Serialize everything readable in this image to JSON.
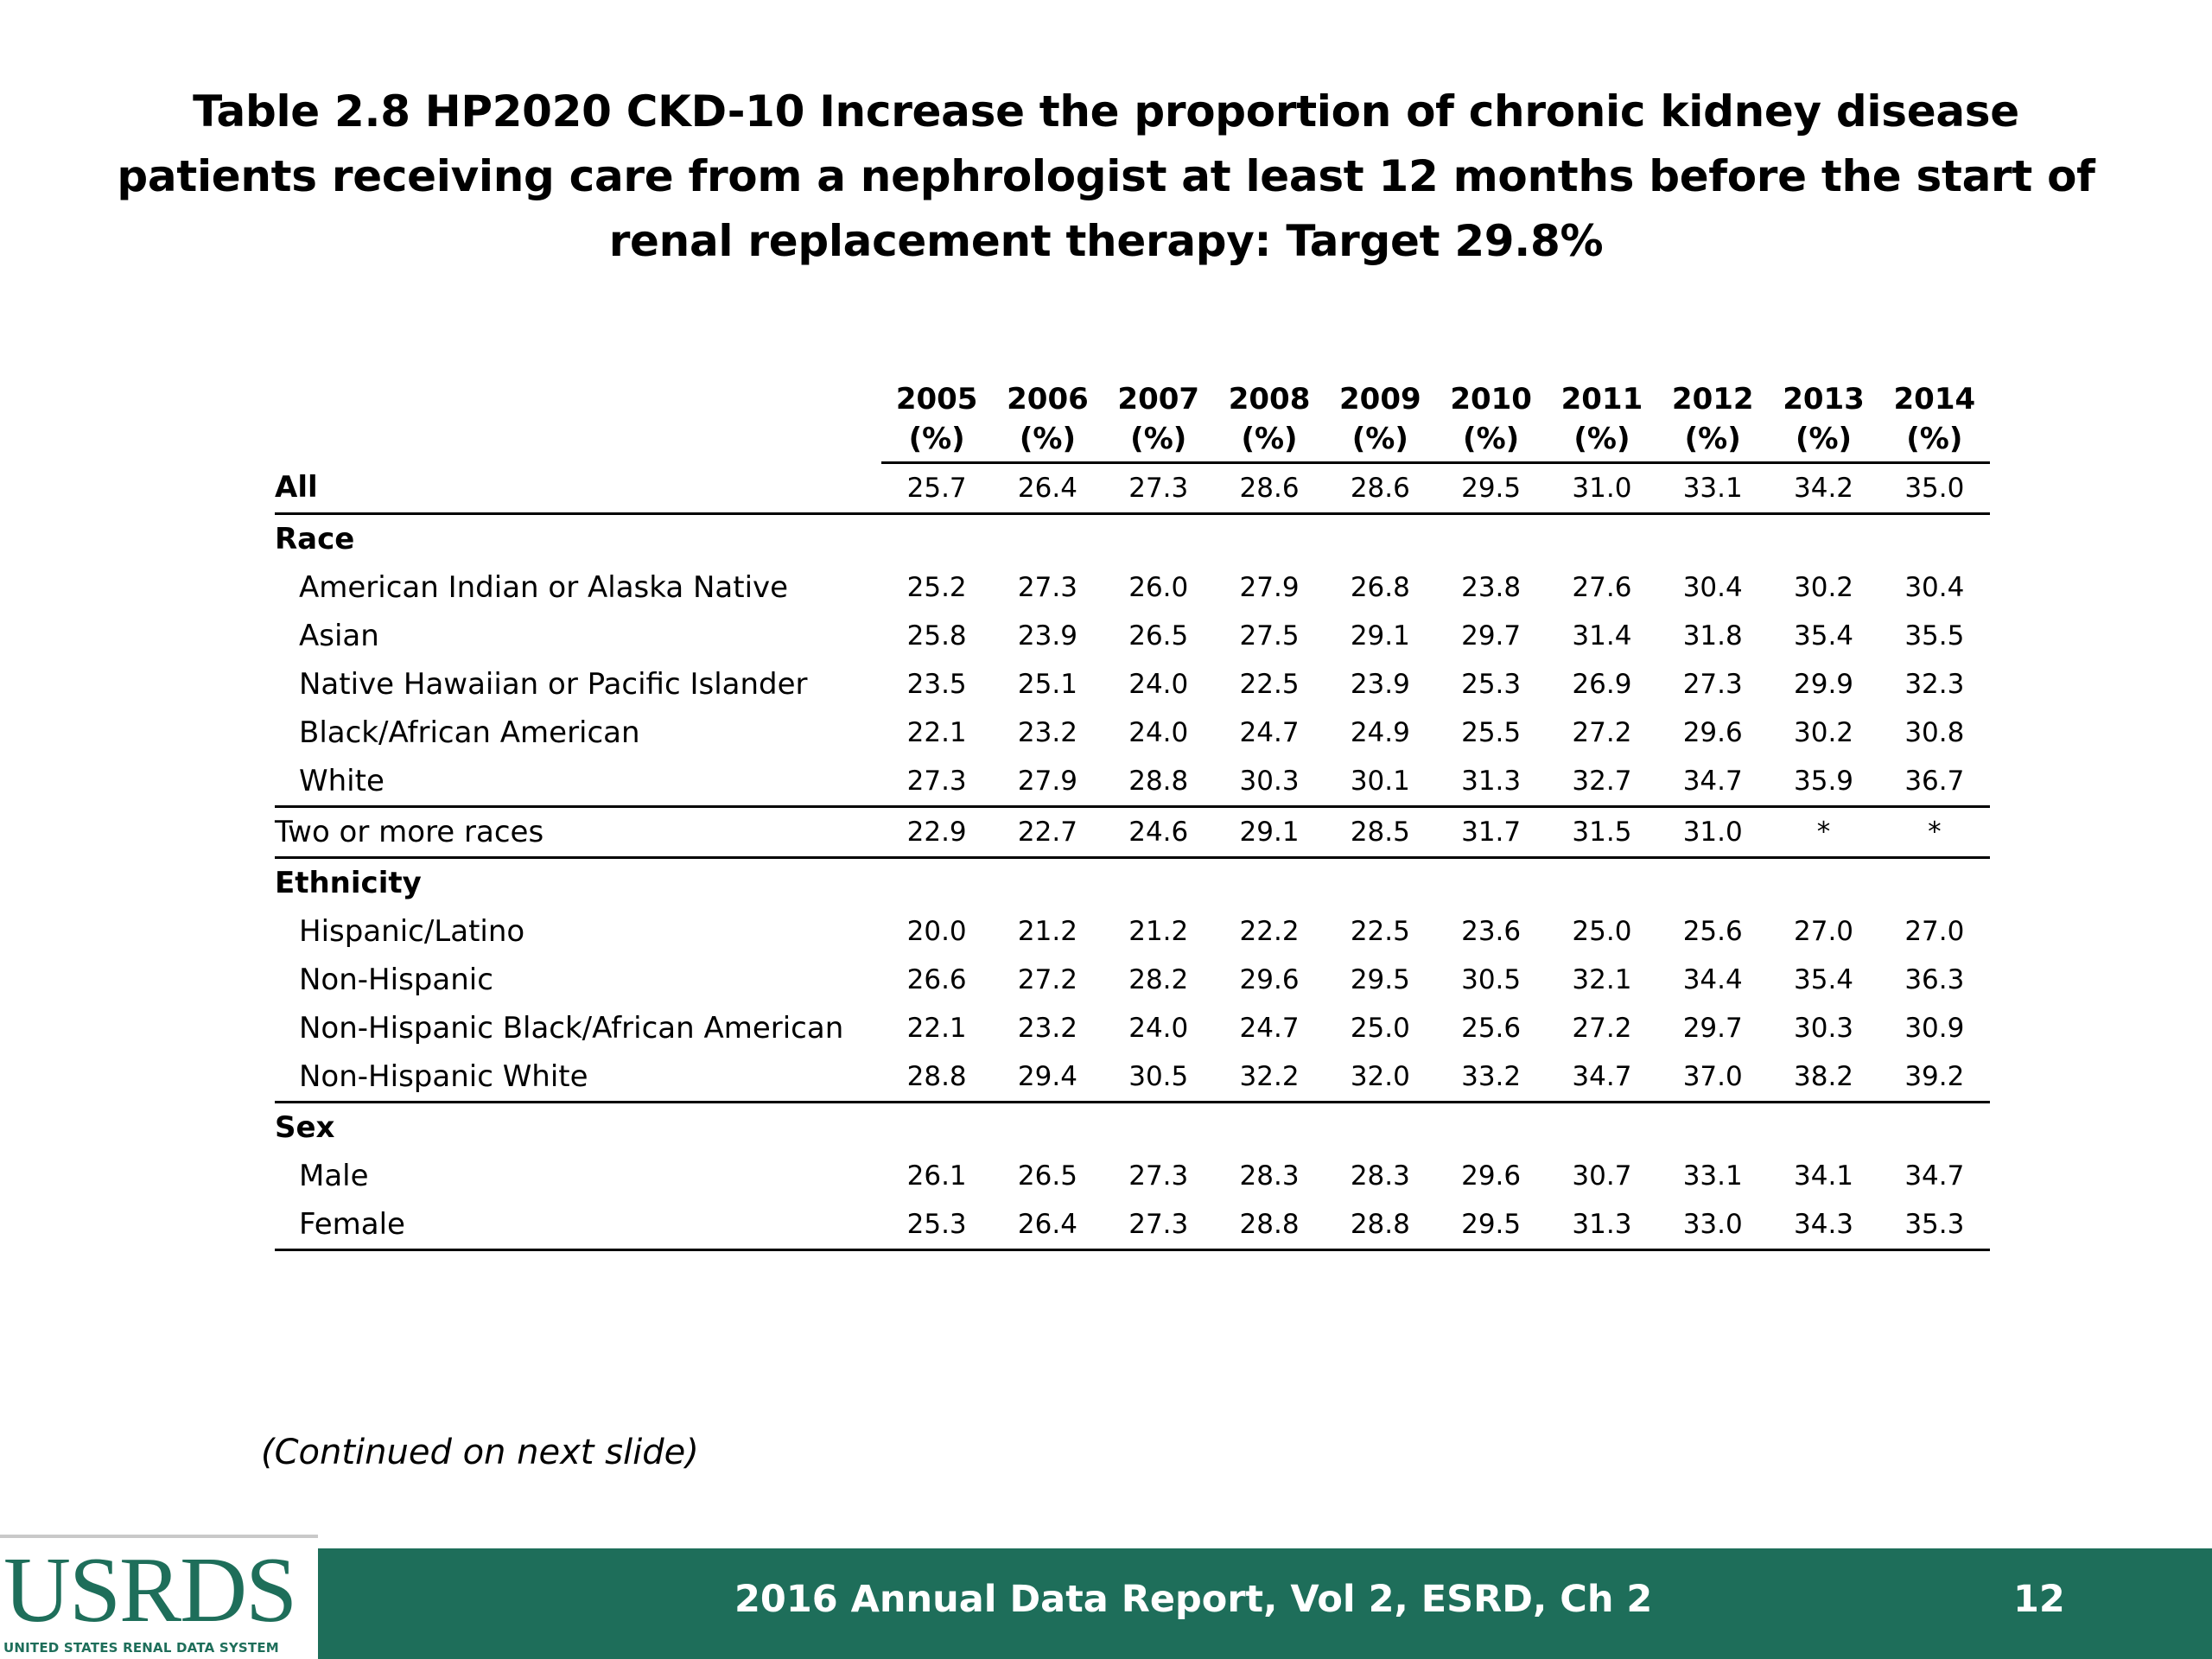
{
  "title": "Table 2.8  HP2020 CKD-10 Increase the proportion of chronic kidney disease patients receiving care from a nephrologist at least 12 months before the start of renal replacement therapy: Target 29.8%",
  "table": {
    "years": [
      "2005",
      "2006",
      "2007",
      "2008",
      "2009",
      "2010",
      "2011",
      "2012",
      "2013",
      "2014"
    ],
    "unit": "(%)",
    "rows": [
      {
        "label": "All",
        "values": [
          "25.7",
          "26.4",
          "27.3",
          "28.6",
          "28.6",
          "29.5",
          "31.0",
          "33.1",
          "34.2",
          "35.0"
        ]
      },
      {
        "label": "Race",
        "values": []
      },
      {
        "label": "American Indian or Alaska Native",
        "values": [
          "25.2",
          "27.3",
          "26.0",
          "27.9",
          "26.8",
          "23.8",
          "27.6",
          "30.4",
          "30.2",
          "30.4"
        ]
      },
      {
        "label": "Asian",
        "values": [
          "25.8",
          "23.9",
          "26.5",
          "27.5",
          "29.1",
          "29.7",
          "31.4",
          "31.8",
          "35.4",
          "35.5"
        ]
      },
      {
        "label": "Native Hawaiian or Pacific Islander",
        "values": [
          "23.5",
          "25.1",
          "24.0",
          "22.5",
          "23.9",
          "25.3",
          "26.9",
          "27.3",
          "29.9",
          "32.3"
        ]
      },
      {
        "label": "Black/African American",
        "values": [
          "22.1",
          "23.2",
          "24.0",
          "24.7",
          "24.9",
          "25.5",
          "27.2",
          "29.6",
          "30.2",
          "30.8"
        ]
      },
      {
        "label": "White",
        "values": [
          "27.3",
          "27.9",
          "28.8",
          "30.3",
          "30.1",
          "31.3",
          "32.7",
          "34.7",
          "35.9",
          "36.7"
        ]
      },
      {
        "label": "Two or more races",
        "values": [
          "22.9",
          "22.7",
          "24.6",
          "29.1",
          "28.5",
          "31.7",
          "31.5",
          "31.0",
          "*",
          "*"
        ]
      },
      {
        "label": "Ethnicity",
        "values": []
      },
      {
        "label": "Hispanic/Latino",
        "values": [
          "20.0",
          "21.2",
          "21.2",
          "22.2",
          "22.5",
          "23.6",
          "25.0",
          "25.6",
          "27.0",
          "27.0"
        ]
      },
      {
        "label": "Non-Hispanic",
        "values": [
          "26.6",
          "27.2",
          "28.2",
          "29.6",
          "29.5",
          "30.5",
          "32.1",
          "34.4",
          "35.4",
          "36.3"
        ]
      },
      {
        "label": "Non-Hispanic Black/African American",
        "values": [
          "22.1",
          "23.2",
          "24.0",
          "24.7",
          "25.0",
          "25.6",
          "27.2",
          "29.7",
          "30.3",
          "30.9"
        ]
      },
      {
        "label": "Non-Hispanic White",
        "values": [
          "28.8",
          "29.4",
          "30.5",
          "32.2",
          "32.0",
          "33.2",
          "34.7",
          "37.0",
          "38.2",
          "39.2"
        ]
      },
      {
        "label": "Sex",
        "values": []
      },
      {
        "label": "Male",
        "values": [
          "26.1",
          "26.5",
          "27.3",
          "28.3",
          "28.3",
          "29.6",
          "30.7",
          "33.1",
          "34.1",
          "34.7"
        ]
      },
      {
        "label": "Female",
        "values": [
          "25.3",
          "26.4",
          "27.3",
          "28.8",
          "28.8",
          "29.5",
          "31.3",
          "33.0",
          "34.3",
          "35.3"
        ]
      }
    ]
  },
  "continued_note": "(Continued on next slide)",
  "footer": {
    "logo_text": "USRDS",
    "logo_tagline": "UNITED STATES RENAL DATA SYSTEM",
    "report": "2016 Annual Data Report, Vol 2, ESRD, Ch 2",
    "page_number": "12",
    "bar_color": "#1e6e5a"
  }
}
